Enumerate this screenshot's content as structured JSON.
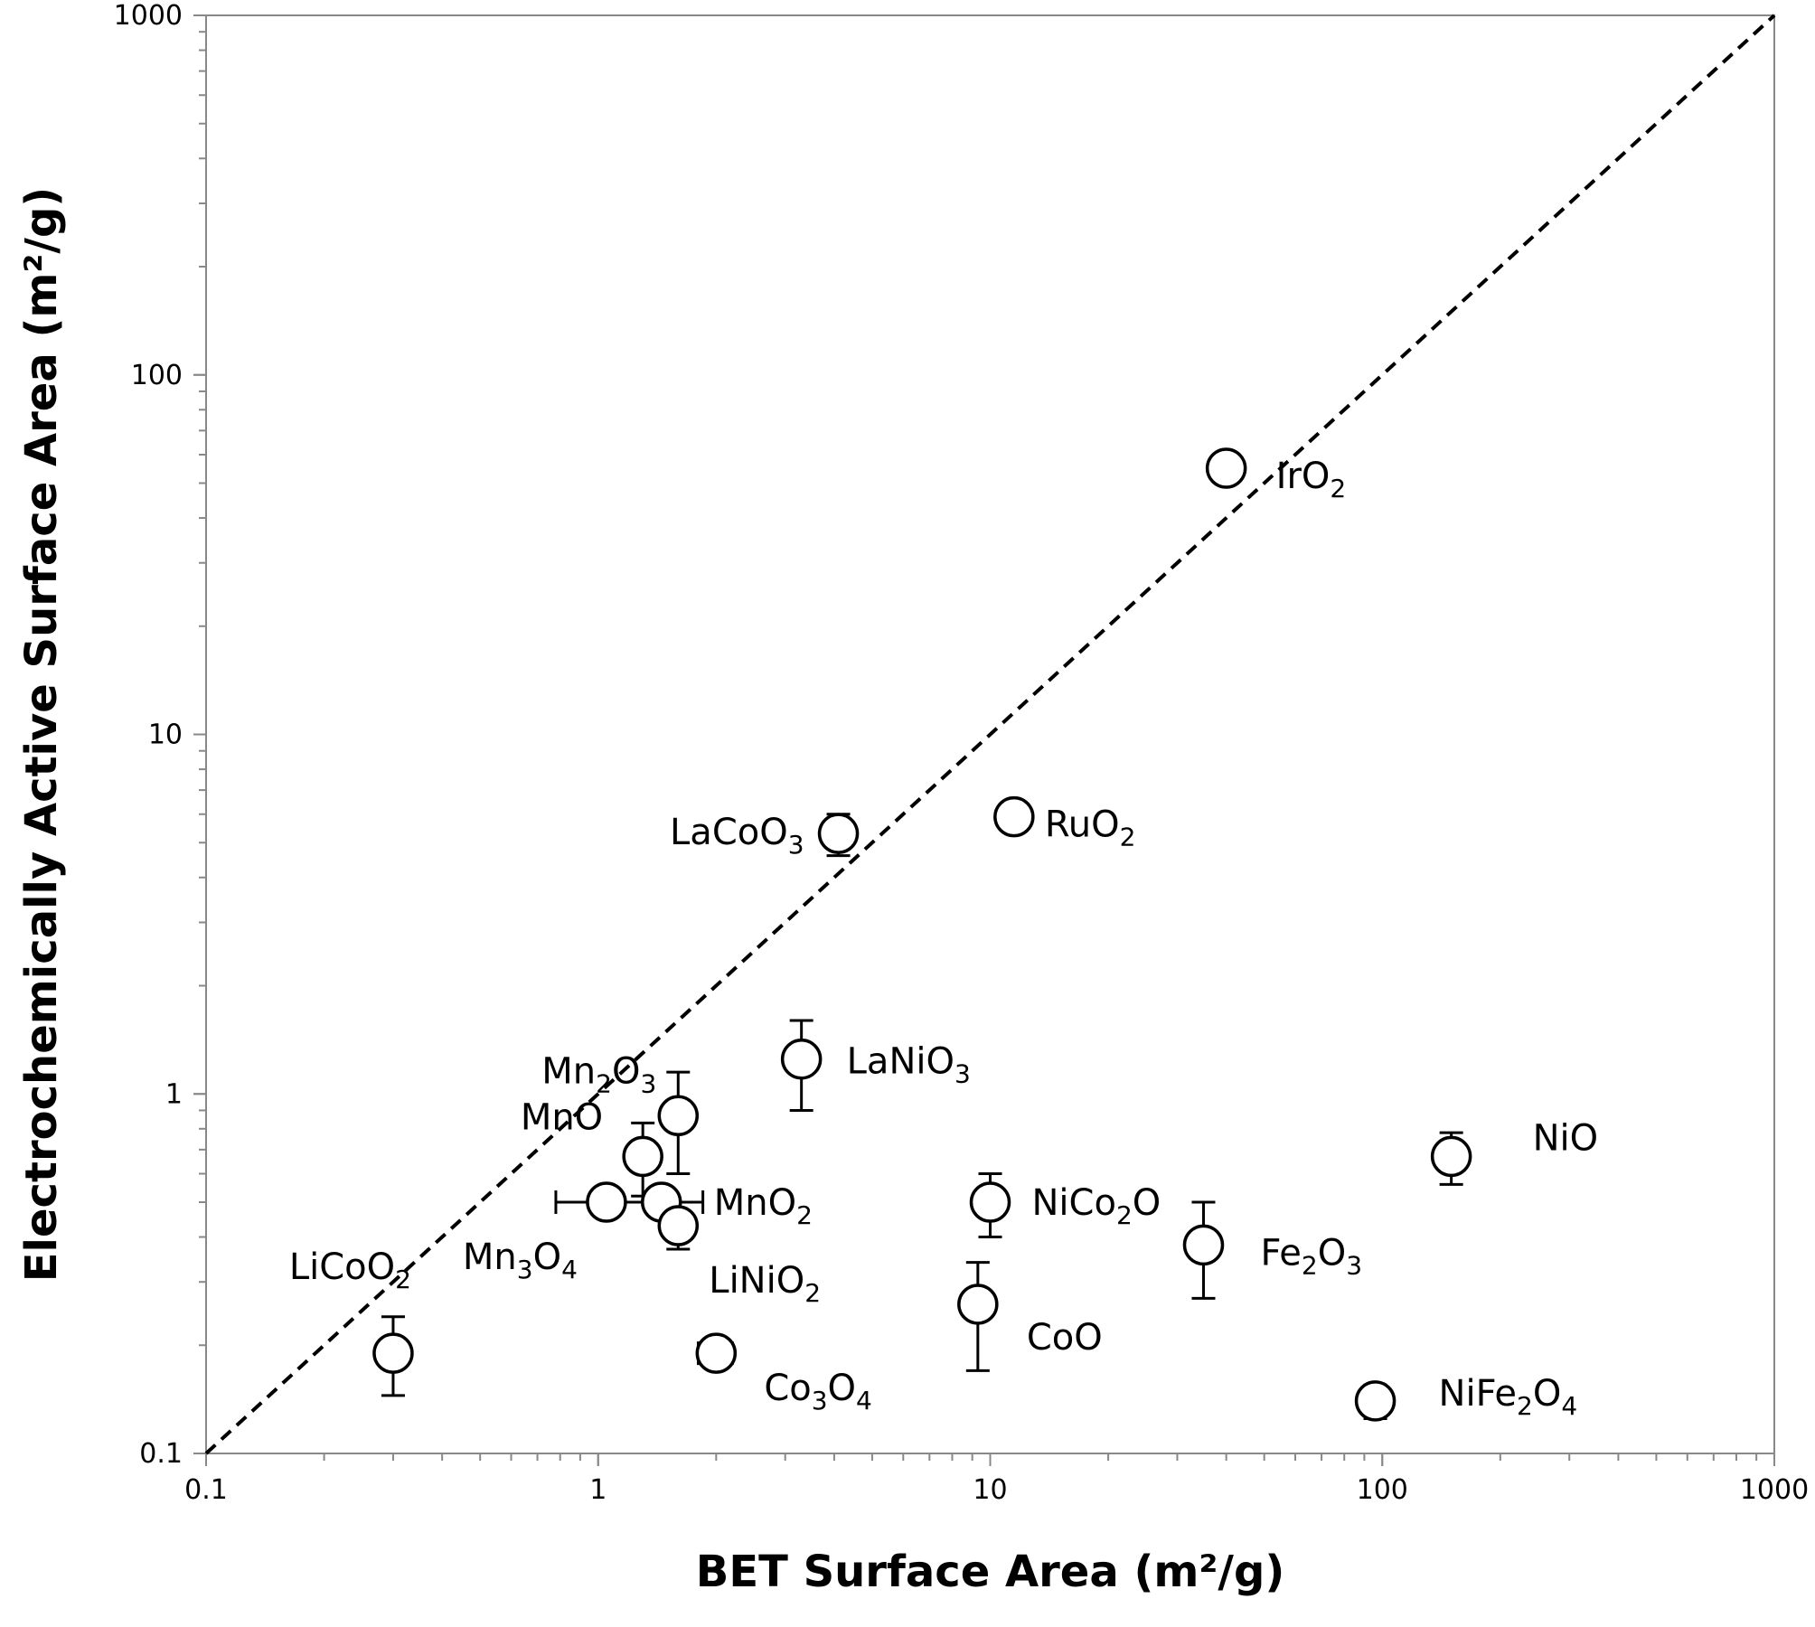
{
  "chart_data": {
    "type": "scatter",
    "title": "",
    "xlabel": "BET Surface Area (m²/g)",
    "ylabel": "Electrochemically Active Surface Area (m²/g)",
    "xscale": "log",
    "yscale": "log",
    "xlim": [
      0.1,
      1000
    ],
    "ylim": [
      0.1,
      1000
    ],
    "x_ticks": [
      0.1,
      1,
      10,
      100,
      1000
    ],
    "y_ticks": [
      0.1,
      1,
      10,
      100,
      1000
    ],
    "x_tick_labels": [
      "0.1",
      "1",
      "10",
      "100",
      "1000"
    ],
    "y_tick_labels": [
      "0.1",
      "1",
      "10",
      "100",
      "1000"
    ],
    "grid": false,
    "legend": "none",
    "reference_line": {
      "style": "dashed",
      "from": [
        0.1,
        0.1
      ],
      "to": [
        1000,
        1000
      ]
    },
    "points": [
      {
        "label": "IrO2",
        "x": 40,
        "y": 55,
        "yerr": [
          55,
          55
        ],
        "xerr": [
          40,
          40
        ]
      },
      {
        "label": "RuO2",
        "x": 11.5,
        "y": 5.9,
        "yerr": [
          5.5,
          6.3
        ],
        "xerr": [
          11,
          11.8
        ]
      },
      {
        "label": "LaCoO3",
        "x": 4.1,
        "y": 5.3,
        "yerr": [
          4.6,
          6.0
        ],
        "xerr": [
          4.1,
          4.1
        ]
      },
      {
        "label": "LaNiO3",
        "x": 3.3,
        "y": 1.25,
        "yerr": [
          0.9,
          1.6
        ],
        "xerr": [
          3.3,
          3.3
        ]
      },
      {
        "label": "Mn2O3",
        "x": 1.6,
        "y": 0.87,
        "yerr": [
          0.6,
          1.15
        ],
        "xerr": [
          1.6,
          1.6
        ]
      },
      {
        "label": "MnO",
        "x": 1.3,
        "y": 0.67,
        "yerr": [
          0.52,
          0.83
        ],
        "xerr": [
          1.3,
          1.3
        ]
      },
      {
        "label": "MnO2",
        "x": 1.45,
        "y": 0.5,
        "yerr": [
          0.5,
          0.5
        ],
        "xerr": [
          1.05,
          1.85
        ]
      },
      {
        "label": "Mn3O4",
        "x": 1.05,
        "y": 0.5,
        "yerr": [
          0.5,
          0.5
        ],
        "xerr": [
          0.78,
          1.05
        ]
      },
      {
        "label": "LiNiO2",
        "x": 1.6,
        "y": 0.43,
        "yerr": [
          0.37,
          0.43
        ],
        "xerr": [
          1.6,
          1.6
        ]
      },
      {
        "label": "LiCoO2",
        "x": 0.3,
        "y": 0.19,
        "yerr": [
          0.145,
          0.24
        ],
        "xerr": [
          0.3,
          0.3
        ]
      },
      {
        "label": "Co3O4",
        "x": 2.0,
        "y": 0.19,
        "yerr": [
          0.19,
          0.19
        ],
        "xerr": [
          1.8,
          2.2
        ]
      },
      {
        "label": "NiCo2O",
        "x": 10,
        "y": 0.5,
        "yerr": [
          0.4,
          0.6
        ],
        "xerr": [
          10,
          10
        ]
      },
      {
        "label": "CoO",
        "x": 9.3,
        "y": 0.26,
        "yerr": [
          0.17,
          0.34
        ],
        "xerr": [
          9.3,
          9.3
        ]
      },
      {
        "label": "Fe2O3",
        "x": 35,
        "y": 0.38,
        "yerr": [
          0.27,
          0.5
        ],
        "xerr": [
          35,
          35
        ]
      },
      {
        "label": "NiO",
        "x": 150,
        "y": 0.67,
        "yerr": [
          0.56,
          0.78
        ],
        "xerr": [
          150,
          150
        ]
      },
      {
        "label": "NiFe2O4",
        "x": 96,
        "y": 0.14,
        "yerr": [
          0.125,
          0.155
        ],
        "xerr": [
          96,
          96
        ]
      }
    ]
  }
}
